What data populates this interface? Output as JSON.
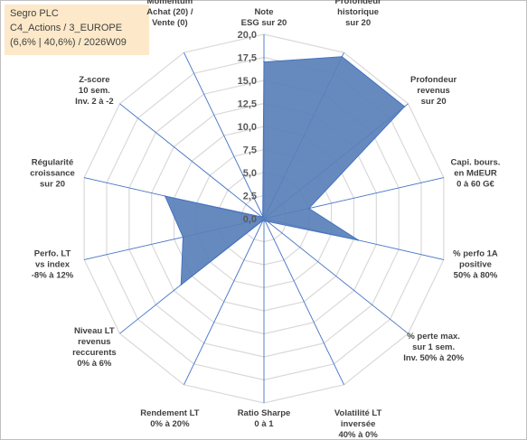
{
  "info": {
    "line1": "Segro PLC",
    "line2": "C4_Actions / 3_EUROPE",
    "line3": "(6,6% | 40,6%) / 2026W09"
  },
  "colors": {
    "fill": "#5a80b8",
    "stroke": "#4472c4",
    "grid": "#d9d9d9",
    "axis": "#4472c4",
    "info_bg": "#fde9c9"
  },
  "chart_data": {
    "type": "radar",
    "rmin": 0,
    "rmax": 20,
    "ticks": [
      "0,0",
      "2,5",
      "5,0",
      "7,5",
      "10,0",
      "12,5",
      "15,0",
      "17,5",
      "20,0"
    ],
    "tick_values": [
      0,
      2.5,
      5,
      7.5,
      10,
      12.5,
      15,
      17.5,
      20
    ],
    "grid": true,
    "axes": [
      {
        "label": [
          "Note",
          "ESG sur 20"
        ],
        "value": 17
      },
      {
        "label": [
          "Profondeur",
          "historique",
          "sur 20"
        ],
        "value": 19.5
      },
      {
        "label": [
          "Profondeur",
          "revenus",
          "sur 20"
        ],
        "value": 19.5
      },
      {
        "label": [
          "Capi. bours.",
          "en MdEUR",
          "0 à 60 G€"
        ],
        "value": 5
      },
      {
        "label": [
          "% perfo 1A",
          "positive",
          "50% à 80%"
        ],
        "value": 10.5
      },
      {
        "label": [
          "% perte max.",
          "sur 1 sem.",
          "Inv. 50% à 20%"
        ],
        "value": 0.5
      },
      {
        "label": [
          "Volatilité LT",
          "inversée",
          "40% à 0%"
        ],
        "value": 0.3
      },
      {
        "label": [
          "Ratio Sharpe",
          "0 à 1"
        ],
        "value": 0.2
      },
      {
        "label": [
          "Rendement LT",
          "0% à 20%"
        ],
        "value": 0.2
      },
      {
        "label": [
          "Niveau LT",
          "revenus",
          "reccurents",
          "0% à 6%"
        ],
        "value": 11.5
      },
      {
        "label": [
          "Perfo. LT",
          "vs index",
          "-8% à 12%"
        ],
        "value": 9
      },
      {
        "label": [
          "Régularité",
          "croissance",
          "sur 20"
        ],
        "value": 11
      },
      {
        "label": [
          "Z-score",
          "10 sem.",
          "Inv. 2 à -2"
        ],
        "value": 0.3
      },
      {
        "label": [
          "Momentum",
          "Achat (20) /",
          "Vente (0)"
        ],
        "value": 0.3
      }
    ]
  }
}
